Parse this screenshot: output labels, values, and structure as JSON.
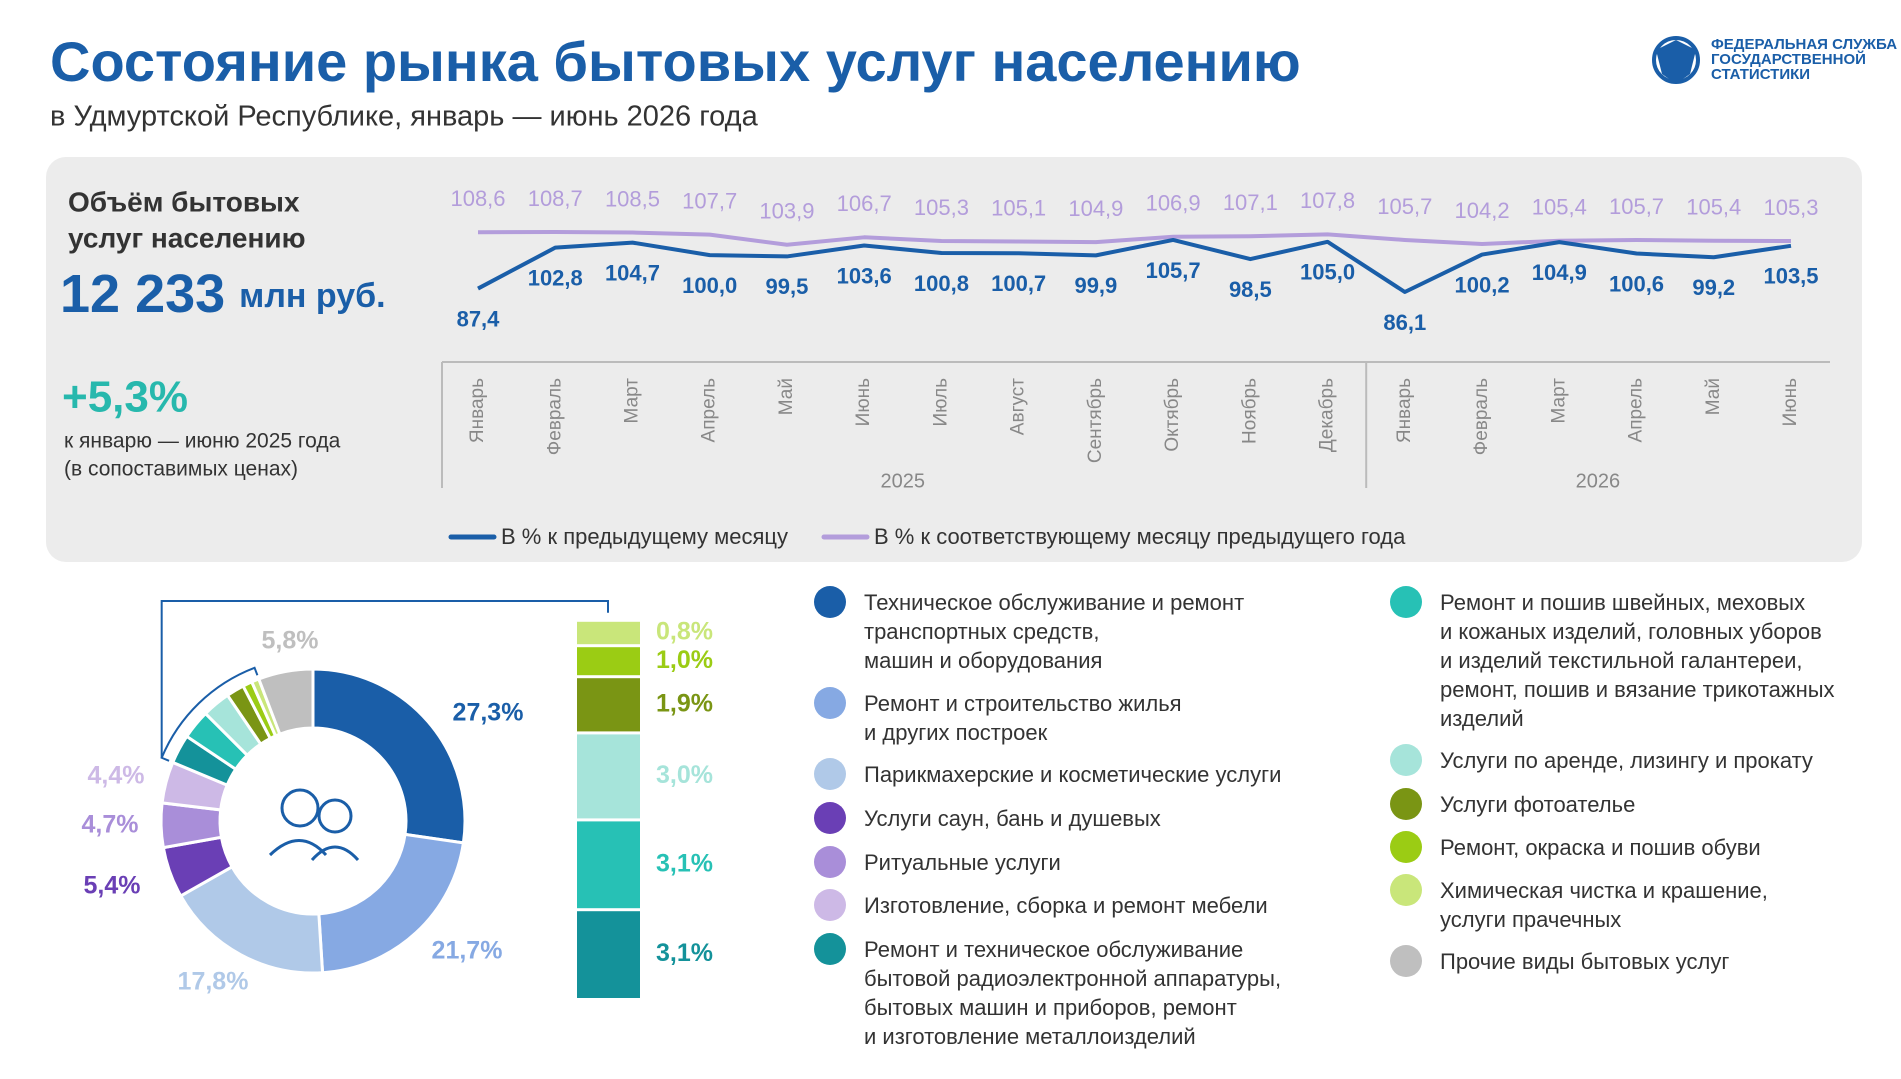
{
  "header": {
    "title": "Состояние рынка бытовых услуг населению",
    "subtitle": "в Удмуртской Республике, январь — июнь 2026 года",
    "logo_lines": [
      "ФЕДЕРАЛЬНАЯ СЛУЖБА",
      "ГОСУДАРСТВЕННОЙ",
      "СТАТИСТИКИ"
    ]
  },
  "summary": {
    "title_lines": [
      "Объём бытовых",
      "услуг населению"
    ],
    "value": "12 233",
    "unit": "млн руб.",
    "change": "+5,3%",
    "note_lines": [
      "к январю — июню 2025 года",
      "(в сопоставимых ценах)"
    ]
  },
  "chart_data": [
    {
      "type": "line",
      "groups": [
        {
          "name": "2025",
          "categories": [
            "Январь",
            "Февраль",
            "Март",
            "Апрель",
            "Май",
            "Июнь",
            "Июль",
            "Август",
            "Сентябрь",
            "Октябрь",
            "Ноябрь",
            "Декабрь"
          ]
        },
        {
          "name": "2026",
          "categories": [
            "Январь",
            "Февраль",
            "Март",
            "Апрель",
            "Май",
            "Июнь"
          ]
        }
      ],
      "series": [
        {
          "name": "В % к предыдущему месяцу",
          "color": "#1a5ea8",
          "values": [
            87.4,
            102.8,
            104.7,
            100.0,
            99.5,
            103.6,
            100.8,
            100.7,
            99.9,
            105.7,
            98.5,
            105.0,
            86.1,
            100.2,
            104.9,
            100.6,
            99.2,
            103.5
          ],
          "value_labels": [
            "87,4",
            "102,8",
            "104,7",
            "100,0",
            "99,5",
            "103,6",
            "100,8",
            "100,7",
            "99,9",
            "105,7",
            "98,5",
            "105,0",
            "86,1",
            "100,2",
            "104,9",
            "100,6",
            "99,2",
            "103,5"
          ]
        },
        {
          "name": "В % к соответствующему месяцу предыдущего года",
          "color": "#b39ddb",
          "values": [
            108.6,
            108.7,
            108.5,
            107.7,
            103.9,
            106.7,
            105.3,
            105.1,
            104.9,
            106.9,
            107.1,
            107.8,
            105.7,
            104.2,
            105.4,
            105.7,
            105.4,
            105.3
          ],
          "value_labels": [
            "108,6",
            "108,7",
            "108,5",
            "107,7",
            "103,9",
            "106,7",
            "105,3",
            "105,1",
            "104,9",
            "106,9",
            "107,1",
            "107,8",
            "105,7",
            "104,2",
            "105,4",
            "105,7",
            "105,4",
            "105,3"
          ]
        }
      ]
    },
    {
      "type": "pie",
      "categories": [
        "Техническое обслуживание и ремонт\nтранспортных средств,\nмашин и оборудования",
        "Ремонт и строительство жилья\nи других построек",
        "Парикмахерские и косметические услуги",
        "Услуги саун, бань и душевых",
        "Ритуальные услуги",
        "Изготовление, сборка и ремонт мебели",
        "Ремонт и техническое обслуживание\nбытовой радиоэлектронной аппаратуры,\nбытовых машин и приборов, ремонт\nи изготовление металлоизделий",
        "Ремонт и пошив швейных, меховых\nи кожаных изделий, головных уборов\nи изделий текстильной галантереи,\nремонт, пошив и вязание трикотажных\nизделий",
        "Услуги по аренде, лизингу и прокату",
        "Услуги фотоателье",
        "Ремонт, окраска и пошив обуви",
        "Химическая чистка и крашение,\nуслуги прачечных",
        "Прочие виды бытовых услуг"
      ],
      "values": [
        27.3,
        21.7,
        17.8,
        5.4,
        4.7,
        4.4,
        3.1,
        3.1,
        3.0,
        1.9,
        1.0,
        0.8,
        5.8
      ],
      "value_labels": [
        "27,3%",
        "21,7%",
        "17,8%",
        "5,4%",
        "4,7%",
        "4,4%",
        "3,1%",
        "3,1%",
        "3,0%",
        "1,9%",
        "1,0%",
        "0,8%",
        "5,8%"
      ],
      "colors": [
        "#1a5ea8",
        "#86a9e3",
        "#b0c9e8",
        "#6a3fb5",
        "#a98ed9",
        "#cdb9e6",
        "#14929a",
        "#27c1b5",
        "#a6e4da",
        "#7a9514",
        "#9bcc14",
        "#c9e67a",
        "#bfbfbf"
      ]
    }
  ]
}
